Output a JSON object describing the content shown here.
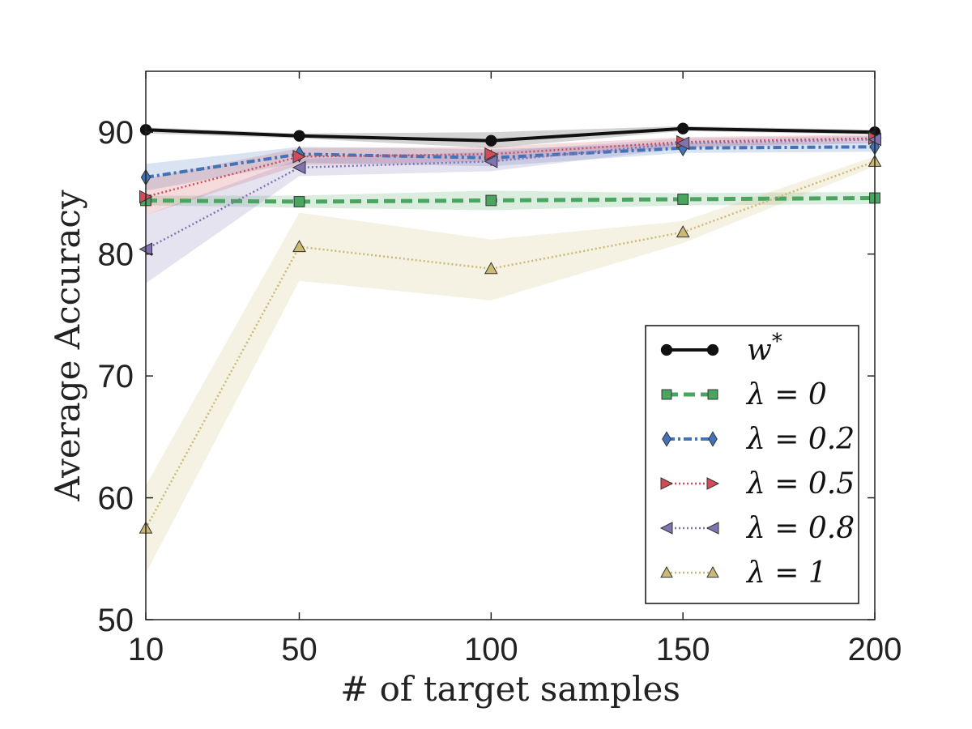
{
  "chart_data": {
    "type": "line",
    "xlabel": "# of target samples",
    "ylabel": "Average Accuracy",
    "x": [
      10,
      50,
      100,
      150,
      200
    ],
    "x_ticks": [
      "10",
      "50",
      "100",
      "150",
      "200"
    ],
    "y_ticks": [
      "50",
      "60",
      "70",
      "80",
      "90"
    ],
    "xlim": [
      10,
      200
    ],
    "ylim": [
      50,
      95
    ],
    "grid": false,
    "legend_position": "lower-right",
    "series": [
      {
        "name": "w*",
        "label": "w",
        "label_sup": "*",
        "color": "#111111",
        "marker": "circle",
        "dash": "solid",
        "values": [
          90.2,
          89.7,
          89.3,
          90.3,
          90.0
        ],
        "lower": [
          89.9,
          89.5,
          88.7,
          90.1,
          89.8
        ],
        "upper": [
          90.4,
          89.9,
          90.0,
          90.5,
          90.2
        ]
      },
      {
        "name": "λ = 0",
        "label": "λ = 0",
        "color": "#4aa560",
        "marker": "square",
        "dash": "dashed",
        "values": [
          84.4,
          84.3,
          84.4,
          84.5,
          84.6
        ],
        "lower": [
          84.0,
          83.8,
          83.6,
          84.0,
          84.1
        ],
        "upper": [
          84.8,
          84.8,
          85.2,
          85.0,
          85.1
        ]
      },
      {
        "name": "λ = 0.2",
        "label": "λ = 0.2",
        "color": "#4272b8",
        "marker": "diamond",
        "dash": "dashdot",
        "values": [
          86.3,
          88.2,
          87.9,
          88.7,
          88.8
        ],
        "lower": [
          85.2,
          87.5,
          87.2,
          88.3,
          88.4
        ],
        "upper": [
          87.4,
          88.8,
          88.6,
          89.1,
          89.2
        ]
      },
      {
        "name": "λ = 0.5",
        "label": "λ = 0.5",
        "color": "#d24b57",
        "marker": "triangle-right",
        "dash": "dotted",
        "values": [
          84.7,
          88.0,
          88.2,
          89.2,
          89.5
        ],
        "lower": [
          83.2,
          87.3,
          87.6,
          88.8,
          89.2
        ],
        "upper": [
          86.2,
          88.7,
          88.8,
          89.6,
          89.8
        ]
      },
      {
        "name": "λ = 0.8",
        "label": "λ = 0.8",
        "color": "#8172b2",
        "marker": "triangle-left",
        "dash": "dotted",
        "values": [
          80.4,
          87.1,
          87.6,
          89.1,
          89.4
        ],
        "lower": [
          77.6,
          86.4,
          86.8,
          88.7,
          89.1
        ],
        "upper": [
          83.2,
          87.8,
          88.4,
          89.5,
          89.7
        ]
      },
      {
        "name": "λ = 1",
        "label": "λ = 1",
        "color": "#ccb974",
        "marker": "triangle-up",
        "dash": "dotted",
        "values": [
          57.5,
          80.6,
          78.8,
          81.8,
          87.6
        ],
        "lower": [
          53.8,
          77.8,
          76.2,
          80.9,
          87.2
        ],
        "upper": [
          61.0,
          83.4,
          81.2,
          82.7,
          88.0
        ]
      }
    ]
  }
}
